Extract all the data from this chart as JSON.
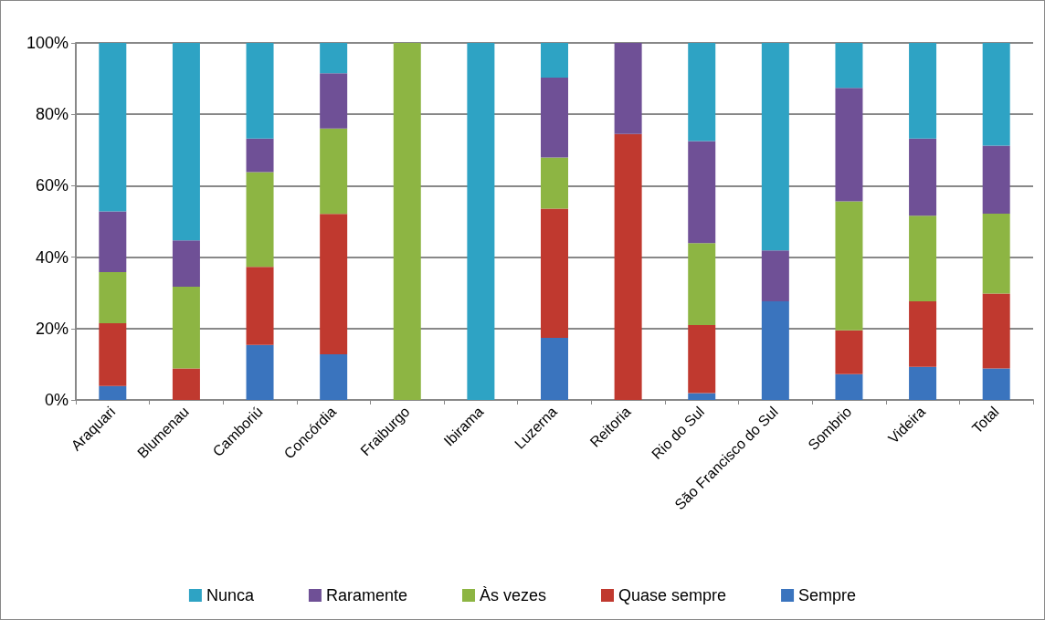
{
  "chart_data": {
    "type": "bar",
    "stacked": true,
    "categories": [
      "Araquari",
      "Blumenau",
      "Camboriú",
      "Concórdia",
      "Fraiburgo",
      "Ibirama",
      "Luzerna",
      "Reitoria",
      "Rio do Sul",
      "São Francisco do Sul",
      "Sombrio",
      "Videira",
      "Total"
    ],
    "series": [
      {
        "name": "Sempre",
        "color": "#3a74be",
        "values": [
          3.9,
          0,
          15.4,
          12.8,
          0,
          0,
          17.4,
          0,
          1.9,
          27.6,
          7.2,
          9.3,
          8.8
        ]
      },
      {
        "name": "Quase sempre",
        "color": "#c0392f",
        "values": [
          17.6,
          8.8,
          21.9,
          39.3,
          0,
          0,
          36.2,
          74.5,
          19.1,
          0,
          12.3,
          18.3,
          21.0
        ]
      },
      {
        "name": "Às vezes",
        "color": "#8db543",
        "values": [
          14.3,
          22.9,
          26.5,
          23.9,
          100,
          0,
          14.3,
          0,
          22.9,
          0,
          36.1,
          24.0,
          22.4
        ]
      },
      {
        "name": "Raramente",
        "color": "#6f5096",
        "values": [
          17.0,
          13.0,
          9.4,
          15.5,
          0,
          0,
          22.4,
          25.5,
          28.6,
          14.3,
          31.8,
          21.6,
          19.0
        ]
      },
      {
        "name": "Nunca",
        "color": "#2ea3c4",
        "values": [
          47.2,
          55.3,
          26.8,
          8.5,
          0,
          100,
          9.7,
          0,
          27.5,
          58.1,
          12.6,
          26.8,
          28.8
        ]
      }
    ],
    "ylim": [
      0,
      100
    ],
    "yticks": [
      {
        "value": 0,
        "label": "0%"
      },
      {
        "value": 20,
        "label": "20%"
      },
      {
        "value": 40,
        "label": "40%"
      },
      {
        "value": 60,
        "label": "60%"
      },
      {
        "value": 80,
        "label": "80%"
      },
      {
        "value": 100,
        "label": "100%"
      }
    ],
    "grid": "y",
    "legend": "bottom"
  }
}
